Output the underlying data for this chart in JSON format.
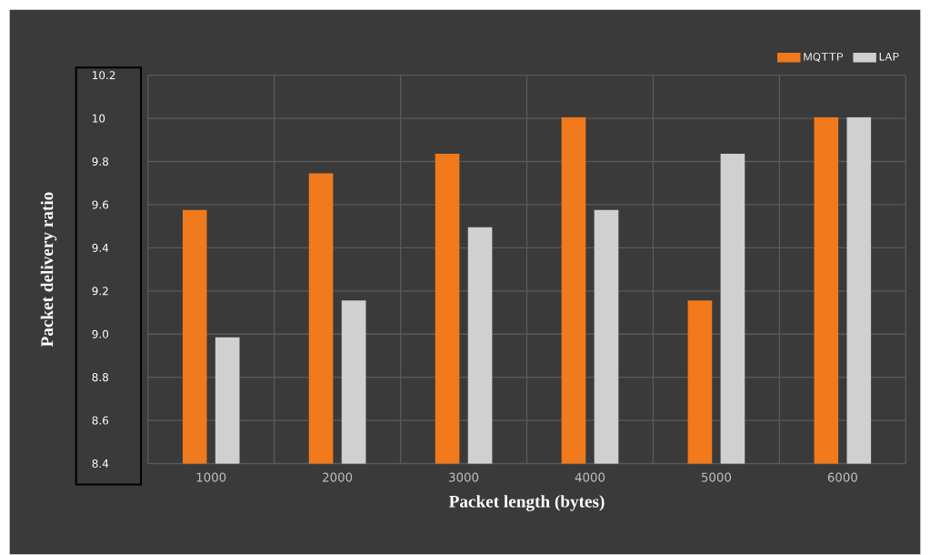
{
  "chart_data": {
    "type": "bar",
    "xlabel": "Packet length (bytes)",
    "ylabel": "Packet delivery ratio",
    "categories": [
      "1000",
      "2000",
      "3000",
      "4000",
      "5000",
      "6000"
    ],
    "series": [
      {
        "name": "MQTTP",
        "color": "#f07a1c",
        "values": [
          9.57,
          9.74,
          9.83,
          10,
          9.15,
          10
        ]
      },
      {
        "name": "LAP",
        "color": "#d0d0d0",
        "values": [
          8.98,
          9.15,
          9.49,
          9.57,
          9.83,
          10
        ]
      }
    ],
    "ylim": [
      8.4,
      10.2
    ],
    "yticks": [
      8.4,
      8.6,
      8.8,
      {
        "value": 9.0,
        "label": "9.0"
      },
      9.2,
      9.4,
      9.6,
      9.8,
      10,
      10.2
    ],
    "grid": true,
    "legend": "top right"
  }
}
